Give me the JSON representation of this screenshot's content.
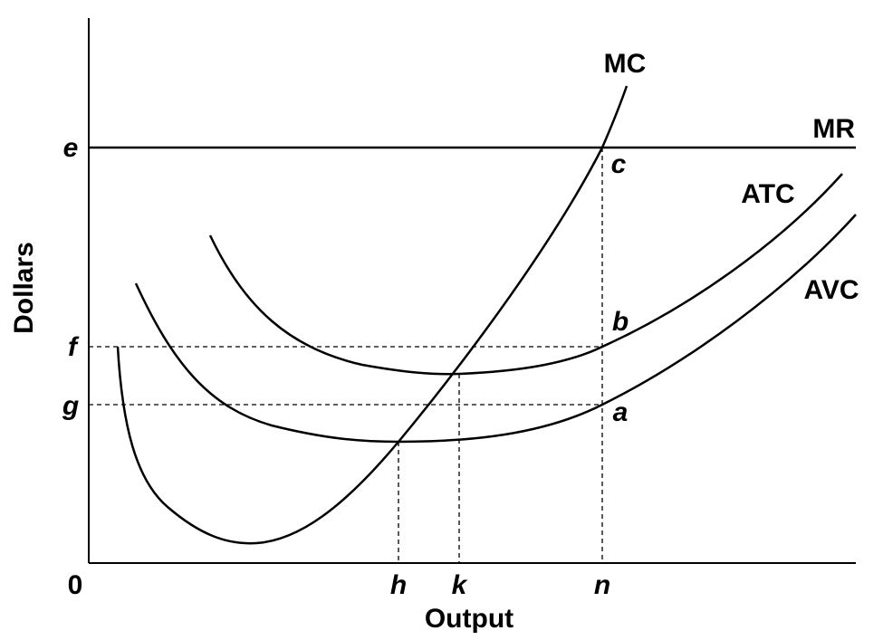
{
  "axes": {
    "y_label": "Dollars",
    "x_label": "Output",
    "origin": "0"
  },
  "curves": {
    "mc": "MC",
    "mr": "MR",
    "atc": "ATC",
    "avc": "AVC"
  },
  "price_labels": {
    "e": "e",
    "f": "f",
    "g": "g"
  },
  "quantity_labels": {
    "h": "h",
    "k": "k",
    "n": "n"
  },
  "point_labels": {
    "c": "c",
    "b": "b",
    "a": "a"
  }
}
